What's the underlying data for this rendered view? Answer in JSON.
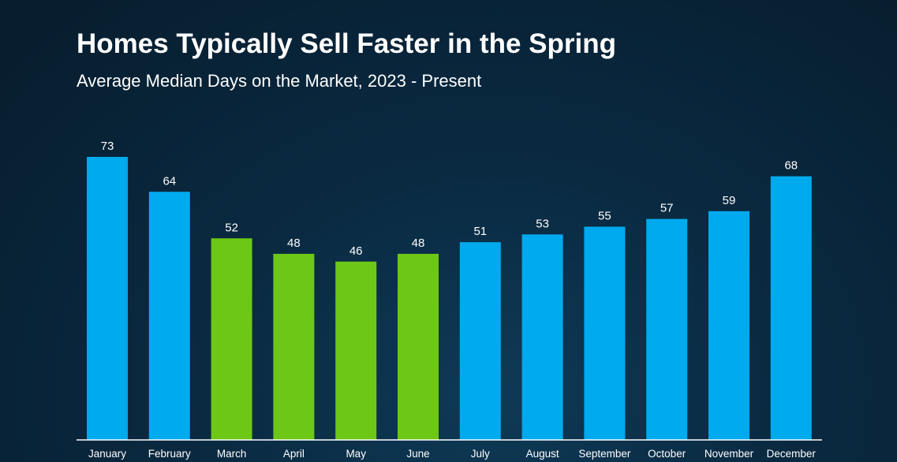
{
  "chart_data": {
    "type": "bar",
    "title": "Homes Typically Sell Faster in the Spring",
    "subtitle": "Average Median Days on the Market, 2023 - Present",
    "xlabel": "",
    "ylabel": "",
    "categories": [
      "January",
      "February",
      "March",
      "April",
      "May",
      "June",
      "July",
      "August",
      "September",
      "October",
      "November",
      "December"
    ],
    "values": [
      73,
      64,
      52,
      48,
      46,
      48,
      51,
      53,
      55,
      57,
      59,
      68
    ],
    "highlighted": [
      false,
      false,
      true,
      true,
      true,
      true,
      false,
      false,
      false,
      false,
      false,
      false
    ],
    "ylim": [
      0,
      73
    ],
    "grid": false,
    "legend": "none",
    "colors": {
      "default_bar": "#00aaee",
      "highlight_bar": "#6cc717",
      "text": "#ffffff",
      "axis": "#ffffff"
    }
  }
}
